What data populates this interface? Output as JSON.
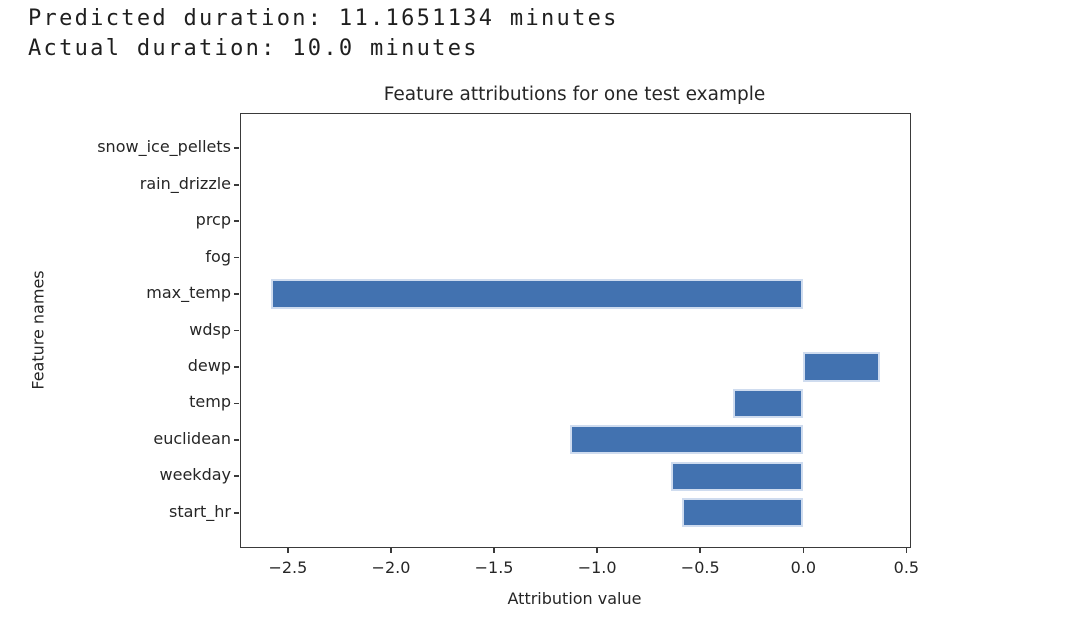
{
  "stdout": {
    "line1": "Predicted duration: 11.1651134 minutes",
    "line2": "Actual duration: 10.0 minutes"
  },
  "chart_data": {
    "type": "bar",
    "orientation": "horizontal",
    "title": "Feature attributions for one test example",
    "xlabel": "Attribution value",
    "ylabel": "Feature names",
    "categories_top_to_bottom": [
      "snow_ice_pellets",
      "rain_drizzle",
      "prcp",
      "fog",
      "max_temp",
      "wdsp",
      "dewp",
      "temp",
      "euclidean",
      "weekday",
      "start_hr"
    ],
    "values_top_to_bottom": [
      0,
      0,
      0,
      0,
      -2.58,
      0,
      0.37,
      -0.34,
      -1.13,
      -0.64,
      -0.59
    ],
    "xlim": [
      -2.7275,
      0.5175
    ],
    "xticks": [
      -2.5,
      -2.0,
      -1.5,
      -1.0,
      -0.5,
      0.0,
      0.5
    ],
    "xtick_labels": [
      "−2.5",
      "−2.0",
      "−1.5",
      "−1.0",
      "−0.5",
      "0.0",
      "0.5"
    ],
    "grid": false,
    "legend": false,
    "colors": {
      "bar_fill": "#4272b0",
      "bar_edge": "#cfdcef",
      "spine": "#3a3a3a",
      "text": "#262626"
    }
  }
}
